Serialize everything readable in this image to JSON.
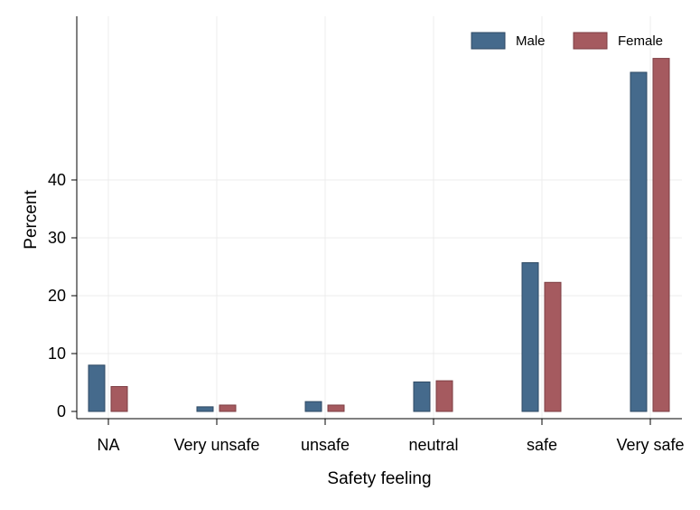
{
  "chart_data": {
    "type": "bar",
    "categories": [
      "NA",
      "Very unsafe",
      "unsafe",
      "neutral",
      "safe",
      "Very safe"
    ],
    "series": [
      {
        "name": "Male",
        "values": [
          8.0,
          0.8,
          1.7,
          5.1,
          25.7,
          58.6
        ],
        "color": "#456a8c"
      },
      {
        "name": "Female",
        "values": [
          4.3,
          1.1,
          1.1,
          5.3,
          22.3,
          61.0
        ],
        "color": "#a55a5f"
      }
    ],
    "xlabel": "Safety feeling",
    "ylabel": "Percent",
    "yticks": [
      0,
      10,
      20,
      30,
      40
    ],
    "ylim": [
      0,
      68
    ],
    "grid": true,
    "legend_position": "top-right"
  }
}
